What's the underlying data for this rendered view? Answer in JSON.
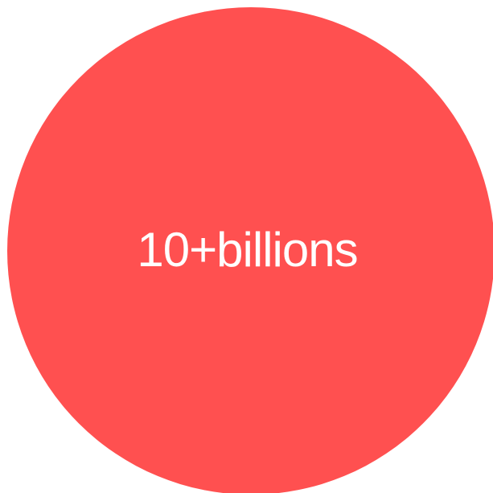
{
  "circle": {
    "label": "10+billions",
    "fill_color": "#ff5050",
    "text_color": "#ffffff"
  }
}
